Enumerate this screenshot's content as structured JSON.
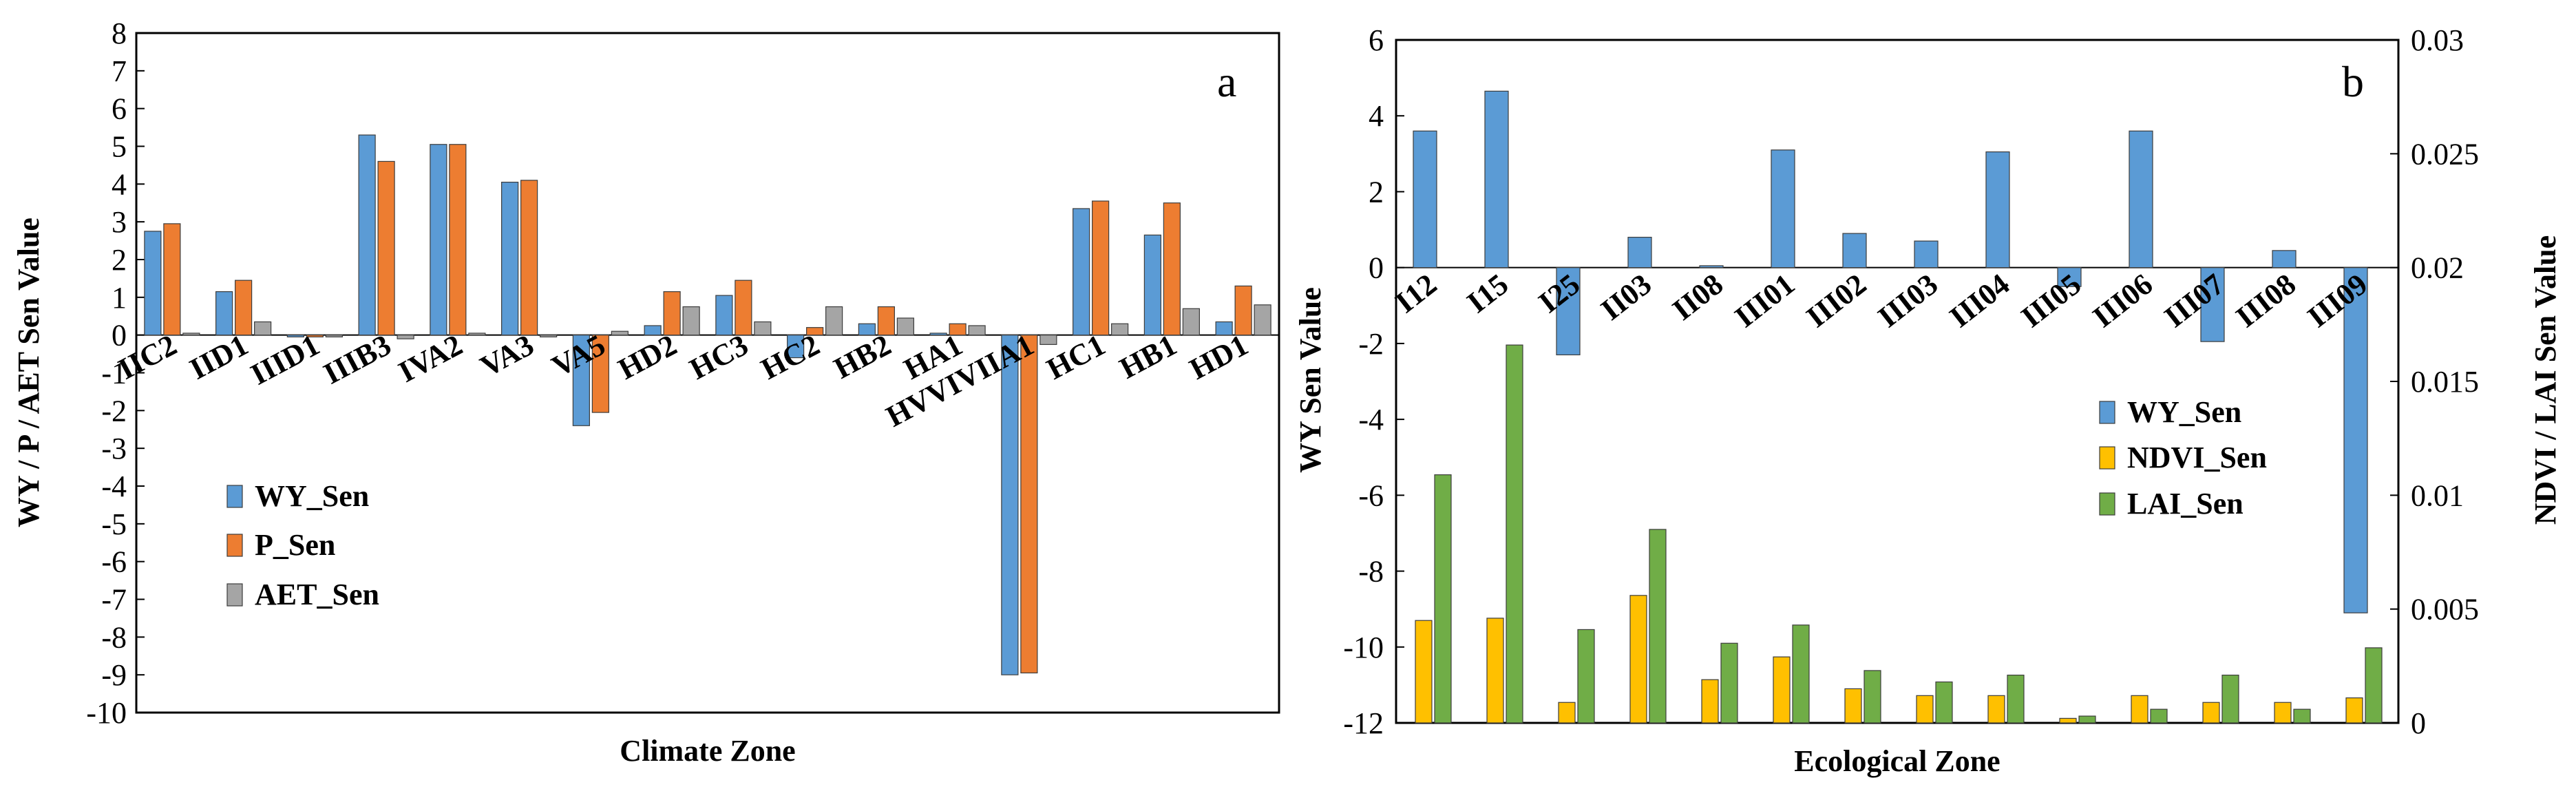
{
  "colors": {
    "wy": "#5b9bd5",
    "p": "#ed7d31",
    "aet": "#a5a5a5",
    "ndvi": "#ffc000",
    "lai": "#70ad47"
  },
  "chart_data": [
    {
      "type": "bar",
      "panel_label": "a",
      "xlabel": "Climate Zone",
      "ylabel": "WY / P / AET  Sen Value",
      "ylim": [
        -10,
        8
      ],
      "yticks": [
        -10,
        -9,
        -8,
        -7,
        -6,
        -5,
        -4,
        -3,
        -2,
        -1,
        0,
        1,
        2,
        3,
        4,
        5,
        6,
        7,
        8
      ],
      "categories": [
        "IIC2",
        "IID1",
        "IIID1",
        "IIIB3",
        "IVA2",
        "VA3",
        "VA5",
        "HD2",
        "HC3",
        "HC2",
        "HB2",
        "HA1",
        "HVVIVIIA1",
        "HC1",
        "HB1",
        "HD1"
      ],
      "series": [
        {
          "name": "WY_Sen",
          "color_key": "wy",
          "values": [
            2.75,
            1.15,
            -0.05,
            5.3,
            5.05,
            4.05,
            -2.4,
            0.25,
            1.05,
            -0.6,
            0.3,
            0.05,
            -9.0,
            3.35,
            2.65,
            0.35
          ]
        },
        {
          "name": "P_Sen",
          "color_key": "p",
          "values": [
            2.95,
            1.45,
            -0.05,
            4.6,
            5.05,
            4.1,
            -2.05,
            1.15,
            1.45,
            0.2,
            0.75,
            0.3,
            -8.95,
            3.55,
            3.5,
            1.3
          ]
        },
        {
          "name": "AET_Sen",
          "color_key": "aet",
          "values": [
            0.05,
            0.35,
            -0.05,
            -0.1,
            0.05,
            -0.05,
            0.1,
            0.75,
            0.35,
            0.75,
            0.45,
            0.25,
            -0.25,
            0.3,
            0.7,
            0.8
          ]
        }
      ],
      "legend": [
        "WY_Sen",
        "P_Sen",
        "AET_Sen"
      ]
    },
    {
      "type": "bar",
      "panel_label": "b",
      "xlabel": "Ecological Zone",
      "ylabel": "WY Sen Value",
      "ylabel_right": "NDVI / LAI Sen Value",
      "ylim": [
        -12,
        6
      ],
      "yticks": [
        -12,
        -10,
        -8,
        -6,
        -4,
        -2,
        0,
        2,
        4,
        6
      ],
      "ylim_right": [
        0,
        0.03
      ],
      "yticks_right": [
        "0",
        "0.005",
        "0.01",
        "0.015",
        "0.02",
        "0.025",
        "0.03"
      ],
      "yticks_right_values": [
        0,
        0.005,
        0.01,
        0.015,
        0.02,
        0.025,
        0.03
      ],
      "categories": [
        "I12",
        "I15",
        "I25",
        "II03",
        "II08",
        "III01",
        "III02",
        "III03",
        "III04",
        "III05",
        "III06",
        "III07",
        "III08",
        "III09"
      ],
      "series": [
        {
          "name": "WY_Sen",
          "axis": "left",
          "color_key": "wy",
          "values": [
            3.6,
            4.65,
            -2.3,
            0.8,
            0.05,
            3.1,
            0.9,
            0.7,
            3.05,
            -0.5,
            3.6,
            -1.95,
            0.45,
            -9.1
          ]
        },
        {
          "name": "NDVI_Sen",
          "axis": "right",
          "color_key": "ndvi",
          "values": [
            0.0045,
            0.0046,
            0.0009,
            0.0056,
            0.0019,
            0.0029,
            0.0015,
            0.0012,
            0.0012,
            0.0002,
            0.0012,
            0.0009,
            0.0009,
            0.0011
          ]
        },
        {
          "name": "LAI_Sen",
          "axis": "right",
          "color_key": "lai",
          "values": [
            0.0109,
            0.0166,
            0.0041,
            0.0085,
            0.0035,
            0.0043,
            0.0023,
            0.0018,
            0.0021,
            0.0003,
            0.0006,
            0.0021,
            0.0006,
            0.0033
          ]
        }
      ],
      "legend": [
        "WY_Sen",
        "NDVI_Sen",
        "LAI_Sen"
      ]
    }
  ]
}
